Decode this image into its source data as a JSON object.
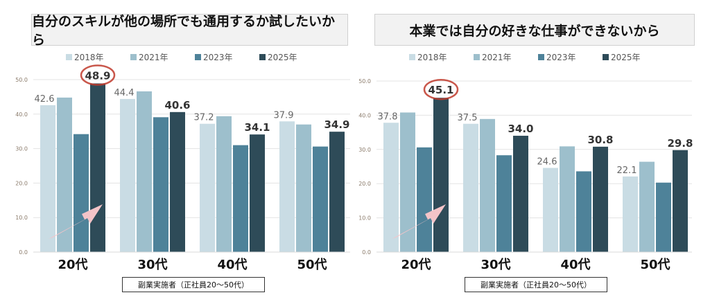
{
  "colors": {
    "2018年": "#c9dce4",
    "2021年": "#9dbfcc",
    "2023年": "#4e8299",
    "2025年": "#2e4b58",
    "highlight": "#c0392b",
    "arrow": "#f4c4c8"
  },
  "chart_data": [
    {
      "type": "bar",
      "title": "自分のスキルが他の場所でも通用するか試したいから",
      "categories": [
        "20代",
        "30代",
        "40代",
        "50代"
      ],
      "series": [
        {
          "name": "2018年",
          "values": [
            42.6,
            44.4,
            37.2,
            37.9
          ]
        },
        {
          "name": "2021年",
          "values": [
            44.8,
            46.6,
            39.4,
            37.0
          ]
        },
        {
          "name": "2023年",
          "values": [
            34.2,
            39.1,
            31.0,
            30.6
          ]
        },
        {
          "name": "2025年",
          "values": [
            48.9,
            40.6,
            34.1,
            34.9
          ]
        }
      ],
      "labeled_series": [
        "2018年",
        "2025年"
      ],
      "highlight": {
        "category": "20代",
        "series": "2025年"
      },
      "yticks": [
        "0.0",
        "10.0",
        "20.0",
        "30.0",
        "40.0",
        "50.0"
      ],
      "ylim": [
        0,
        50
      ],
      "grid": true,
      "legend": "top",
      "footnote": "副業実施者（正社員20～50代）"
    },
    {
      "type": "bar",
      "title": "本業では自分の好きな仕事ができないから",
      "categories": [
        "20代",
        "30代",
        "40代",
        "50代"
      ],
      "series": [
        {
          "name": "2018年",
          "values": [
            37.8,
            37.5,
            24.6,
            22.1
          ]
        },
        {
          "name": "2021年",
          "values": [
            40.8,
            38.9,
            30.9,
            26.4
          ]
        },
        {
          "name": "2023年",
          "values": [
            30.6,
            28.3,
            23.6,
            20.3
          ]
        },
        {
          "name": "2025年",
          "values": [
            45.1,
            34.0,
            30.8,
            29.8
          ]
        }
      ],
      "labeled_series": [
        "2018年",
        "2025年"
      ],
      "highlight": {
        "category": "20代",
        "series": "2025年"
      },
      "yticks": [
        "0.0",
        "10.0",
        "20.0",
        "30.0",
        "40.0",
        "50.0"
      ],
      "ylim": [
        0,
        50
      ],
      "grid": true,
      "legend": "top",
      "footnote": "副業実施者（正社員20～50代）"
    }
  ]
}
